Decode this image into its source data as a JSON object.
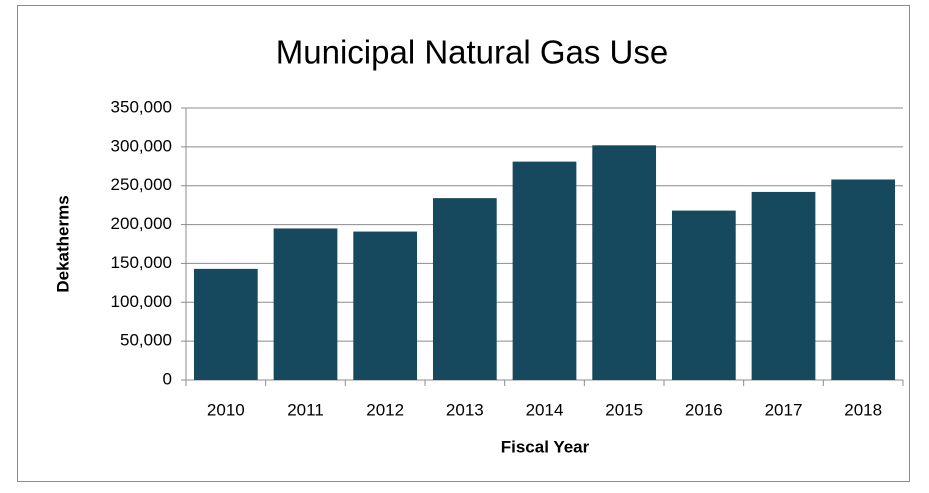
{
  "chart_data": {
    "type": "bar",
    "title": "Municipal Natural Gas Use",
    "x_label": "Fiscal Year",
    "y_label": "Dekatherms",
    "categories": [
      "2010",
      "2011",
      "2012",
      "2013",
      "2014",
      "2015",
      "2016",
      "2017",
      "2018"
    ],
    "values": [
      143000,
      195000,
      191000,
      234000,
      281000,
      302000,
      218000,
      242000,
      258000
    ],
    "color": "#17495e",
    "ylim": [
      0,
      350000
    ],
    "yticks": [
      0,
      {
        "value": 50000,
        "label": "50,000"
      },
      {
        "value": 100000,
        "label": "100,000"
      },
      {
        "value": 150000,
        "label": "150,000"
      },
      {
        "value": 200000,
        "label": "200,000"
      },
      {
        "value": 250000,
        "label": "250,000"
      },
      {
        "value": 300000,
        "label": "300,000"
      },
      {
        "value": 350000,
        "label": "350,000"
      }
    ],
    "grid": true
  }
}
